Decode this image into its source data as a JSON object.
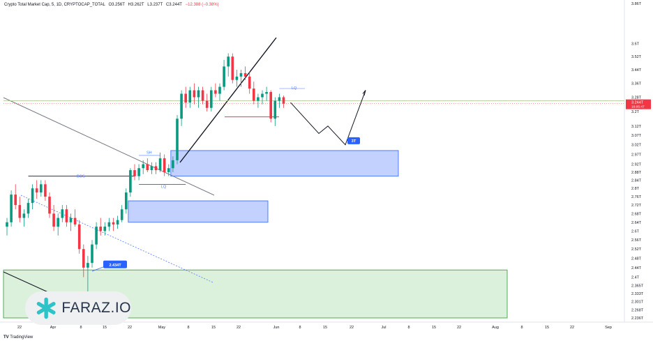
{
  "header": {
    "title": "Crypto Total Market Cap, 5, 1D, CRYPTOCAP_TOTAL",
    "open": "O3.256T",
    "high": "H3.262T",
    "low": "L3.237T",
    "close": "C3.244T",
    "change": "−12.388 (−0.38%)"
  },
  "branding": {
    "faraz_logo": "FARAZ.IO",
    "tradingview": "TradingView"
  },
  "colors": {
    "up": "#089981",
    "down": "#f23645",
    "zone": "#4f7cff",
    "green_zone": "#bfe6bf"
  },
  "price_tag": {
    "price": "3.244T",
    "countdown": "16:05:47"
  },
  "chart_data": {
    "type": "candlestick",
    "y_scale": "log",
    "ylim": [
      "2.236T",
      "3.86T"
    ],
    "y_ticks": [
      "3.86T",
      "3.6T",
      "3.52T",
      "3.44T",
      "3.36T",
      "3.28T",
      "3.2T",
      "3.12T",
      "3.07T",
      "3.02T",
      "2.97T",
      "2.92T",
      "2.88T",
      "2.84T",
      "2.8T",
      "2.76T",
      "2.72T",
      "2.68T",
      "2.64T",
      "2.6T",
      "2.56T",
      "2.52T",
      "2.48T",
      "2.44T",
      "2.4T",
      "2.365T",
      "2.333T",
      "2.301T",
      "2.268T",
      "2.236T"
    ],
    "x_ticks": [
      "22",
      "Apr",
      "8",
      "15",
      "22",
      "May",
      "8",
      "15",
      "22",
      "Jun",
      "8",
      "15",
      "22",
      "Jul",
      "8",
      "15",
      "22",
      "Aug",
      "8",
      "15",
      "22",
      "Sep"
    ],
    "candles": [
      {
        "o": 2.62,
        "h": 2.66,
        "l": 2.58,
        "c": 2.64
      },
      {
        "o": 2.64,
        "h": 2.79,
        "l": 2.62,
        "c": 2.77
      },
      {
        "o": 2.77,
        "h": 2.82,
        "l": 2.7,
        "c": 2.72
      },
      {
        "o": 2.72,
        "h": 2.76,
        "l": 2.64,
        "c": 2.66
      },
      {
        "o": 2.66,
        "h": 2.7,
        "l": 2.62,
        "c": 2.68
      },
      {
        "o": 2.68,
        "h": 2.75,
        "l": 2.66,
        "c": 2.73
      },
      {
        "o": 2.73,
        "h": 2.82,
        "l": 2.7,
        "c": 2.8
      },
      {
        "o": 2.8,
        "h": 2.84,
        "l": 2.75,
        "c": 2.78
      },
      {
        "o": 2.78,
        "h": 2.84,
        "l": 2.76,
        "c": 2.82
      },
      {
        "o": 2.82,
        "h": 2.84,
        "l": 2.74,
        "c": 2.76
      },
      {
        "o": 2.76,
        "h": 2.78,
        "l": 2.66,
        "c": 2.68
      },
      {
        "o": 2.68,
        "h": 2.72,
        "l": 2.6,
        "c": 2.62
      },
      {
        "o": 2.62,
        "h": 2.68,
        "l": 2.58,
        "c": 2.66
      },
      {
        "o": 2.66,
        "h": 2.72,
        "l": 2.64,
        "c": 2.7
      },
      {
        "o": 2.7,
        "h": 2.72,
        "l": 2.62,
        "c": 2.64
      },
      {
        "o": 2.64,
        "h": 2.68,
        "l": 2.6,
        "c": 2.66
      },
      {
        "o": 2.66,
        "h": 2.7,
        "l": 2.62,
        "c": 2.63
      },
      {
        "o": 2.63,
        "h": 2.65,
        "l": 2.5,
        "c": 2.52
      },
      {
        "o": 2.52,
        "h": 2.54,
        "l": 2.4,
        "c": 2.44
      },
      {
        "o": 2.44,
        "h": 2.49,
        "l": 2.33,
        "c": 2.46
      },
      {
        "o": 2.46,
        "h": 2.56,
        "l": 2.44,
        "c": 2.54
      },
      {
        "o": 2.54,
        "h": 2.64,
        "l": 2.52,
        "c": 2.62
      },
      {
        "o": 2.62,
        "h": 2.66,
        "l": 2.58,
        "c": 2.6
      },
      {
        "o": 2.6,
        "h": 2.64,
        "l": 2.58,
        "c": 2.62
      },
      {
        "o": 2.62,
        "h": 2.66,
        "l": 2.6,
        "c": 2.64
      },
      {
        "o": 2.64,
        "h": 2.66,
        "l": 2.6,
        "c": 2.63
      },
      {
        "o": 2.63,
        "h": 2.67,
        "l": 2.61,
        "c": 2.65
      },
      {
        "o": 2.65,
        "h": 2.72,
        "l": 2.64,
        "c": 2.7
      },
      {
        "o": 2.7,
        "h": 2.8,
        "l": 2.68,
        "c": 2.78
      },
      {
        "o": 2.78,
        "h": 2.9,
        "l": 2.76,
        "c": 2.89
      },
      {
        "o": 2.89,
        "h": 2.92,
        "l": 2.84,
        "c": 2.86
      },
      {
        "o": 2.86,
        "h": 2.92,
        "l": 2.84,
        "c": 2.9
      },
      {
        "o": 2.9,
        "h": 2.94,
        "l": 2.87,
        "c": 2.92
      },
      {
        "o": 2.92,
        "h": 2.95,
        "l": 2.88,
        "c": 2.89
      },
      {
        "o": 2.89,
        "h": 2.93,
        "l": 2.87,
        "c": 2.91
      },
      {
        "o": 2.91,
        "h": 2.93,
        "l": 2.87,
        "c": 2.89
      },
      {
        "o": 2.89,
        "h": 2.98,
        "l": 2.88,
        "c": 2.95
      },
      {
        "o": 2.95,
        "h": 2.97,
        "l": 2.86,
        "c": 2.88
      },
      {
        "o": 2.88,
        "h": 2.92,
        "l": 2.86,
        "c": 2.9
      },
      {
        "o": 2.9,
        "h": 2.96,
        "l": 2.88,
        "c": 2.94
      },
      {
        "o": 2.94,
        "h": 3.18,
        "l": 2.92,
        "c": 3.16
      },
      {
        "o": 3.16,
        "h": 3.32,
        "l": 3.12,
        "c": 3.3
      },
      {
        "o": 3.3,
        "h": 3.34,
        "l": 3.22,
        "c": 3.25
      },
      {
        "o": 3.25,
        "h": 3.34,
        "l": 3.22,
        "c": 3.32
      },
      {
        "o": 3.32,
        "h": 3.36,
        "l": 3.24,
        "c": 3.28
      },
      {
        "o": 3.28,
        "h": 3.34,
        "l": 3.22,
        "c": 3.32
      },
      {
        "o": 3.32,
        "h": 3.34,
        "l": 3.24,
        "c": 3.26
      },
      {
        "o": 3.26,
        "h": 3.3,
        "l": 3.2,
        "c": 3.22
      },
      {
        "o": 3.22,
        "h": 3.34,
        "l": 3.2,
        "c": 3.32
      },
      {
        "o": 3.32,
        "h": 3.36,
        "l": 3.28,
        "c": 3.3
      },
      {
        "o": 3.3,
        "h": 3.36,
        "l": 3.26,
        "c": 3.34
      },
      {
        "o": 3.34,
        "h": 3.5,
        "l": 3.32,
        "c": 3.46
      },
      {
        "o": 3.46,
        "h": 3.54,
        "l": 3.4,
        "c": 3.52
      },
      {
        "o": 3.52,
        "h": 3.54,
        "l": 3.36,
        "c": 3.38
      },
      {
        "o": 3.38,
        "h": 3.44,
        "l": 3.34,
        "c": 3.4
      },
      {
        "o": 3.4,
        "h": 3.44,
        "l": 3.34,
        "c": 3.42
      },
      {
        "o": 3.42,
        "h": 3.46,
        "l": 3.38,
        "c": 3.4
      },
      {
        "o": 3.4,
        "h": 3.43,
        "l": 3.3,
        "c": 3.33
      },
      {
        "o": 3.33,
        "h": 3.37,
        "l": 3.24,
        "c": 3.26
      },
      {
        "o": 3.26,
        "h": 3.3,
        "l": 3.22,
        "c": 3.28
      },
      {
        "o": 3.28,
        "h": 3.32,
        "l": 3.24,
        "c": 3.3
      },
      {
        "o": 3.3,
        "h": 3.34,
        "l": 3.26,
        "c": 3.31
      },
      {
        "o": 3.31,
        "h": 3.32,
        "l": 3.14,
        "c": 3.16
      },
      {
        "o": 3.16,
        "h": 3.28,
        "l": 3.12,
        "c": 3.26
      },
      {
        "o": 3.26,
        "h": 3.3,
        "l": 3.22,
        "c": 3.28
      },
      {
        "o": 3.28,
        "h": 3.29,
        "l": 3.22,
        "c": 3.244
      }
    ],
    "zones": [
      {
        "label": "",
        "top": 2.99,
        "bottom": 2.86,
        "color": "blue"
      },
      {
        "label": "",
        "top": 2.74,
        "bottom": 2.64,
        "color": "blue"
      },
      {
        "label": "",
        "top": 2.43,
        "bottom": 2.236,
        "color": "green"
      }
    ],
    "annotations": {
      "bos": "BOS",
      "sh": "SH",
      "lq_low": "LQ",
      "lq_high": "LQ",
      "target": "3T",
      "low_label": "2.434T"
    }
  }
}
